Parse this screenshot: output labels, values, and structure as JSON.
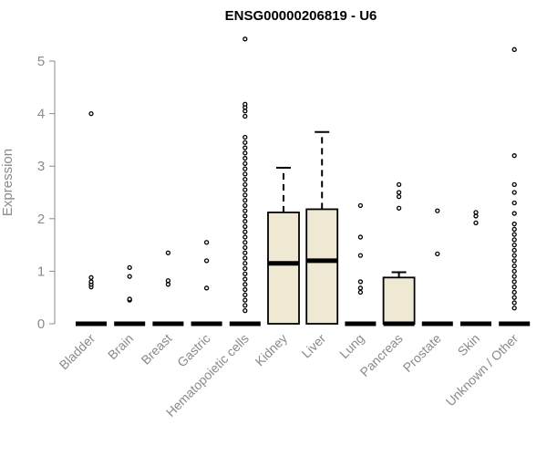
{
  "chart_data": {
    "type": "box",
    "title": "ENSG00000206819 - U6",
    "xlabel": "",
    "ylabel": "Expression",
    "ylim": [
      0,
      5.45
    ],
    "yticks": [
      "0",
      "1",
      "2",
      "3",
      "4",
      "5"
    ],
    "grid": false,
    "box_fill": "#efe9d3",
    "categories": [
      "Bladder",
      "Brain",
      "Breast",
      "Gastric",
      "Hematopoietic cells",
      "Kidney",
      "Liver",
      "Lung",
      "Pancreas",
      "Prostate",
      "Skin",
      "Unknown / Other"
    ],
    "boxes": [
      {
        "category": "Bladder",
        "q1": 0,
        "median": 0,
        "q3": 0,
        "whisker_low": 0,
        "whisker_high": 0,
        "outliers": [
          0.7,
          0.75,
          0.8,
          0.88,
          4.0
        ]
      },
      {
        "category": "Brain",
        "q1": 0,
        "median": 0,
        "q3": 0,
        "whisker_low": 0,
        "whisker_high": 0,
        "outliers": [
          0.45,
          0.47,
          0.9,
          1.07
        ]
      },
      {
        "category": "Breast",
        "q1": 0,
        "median": 0,
        "q3": 0,
        "whisker_low": 0,
        "whisker_high": 0,
        "outliers": [
          0.75,
          0.82,
          1.35
        ]
      },
      {
        "category": "Gastric",
        "q1": 0,
        "median": 0,
        "q3": 0,
        "whisker_low": 0,
        "whisker_high": 0,
        "outliers": [
          0.68,
          1.2,
          1.55
        ]
      },
      {
        "category": "Hematopoietic cells",
        "q1": 0,
        "median": 0,
        "q3": 0,
        "whisker_low": 0,
        "whisker_high": 0,
        "outliers": [
          0.25,
          0.35,
          0.45,
          0.55,
          0.65,
          0.75,
          0.85,
          0.95,
          1.05,
          1.15,
          1.25,
          1.35,
          1.45,
          1.55,
          1.65,
          1.75,
          1.85,
          1.95,
          2.05,
          2.15,
          2.25,
          2.35,
          2.45,
          2.55,
          2.65,
          2.75,
          2.85,
          2.95,
          3.05,
          3.15,
          3.25,
          3.35,
          3.45,
          3.55,
          3.95,
          4.05,
          4.12,
          4.18,
          5.42
        ]
      },
      {
        "category": "Kidney",
        "q1": 0,
        "median": 1.15,
        "q3": 2.12,
        "whisker_low": 0,
        "whisker_high": 2.97,
        "outliers": []
      },
      {
        "category": "Liver",
        "q1": 0,
        "median": 1.2,
        "q3": 2.18,
        "whisker_low": 0,
        "whisker_high": 3.65,
        "outliers": []
      },
      {
        "category": "Lung",
        "q1": 0,
        "median": 0,
        "q3": 0,
        "whisker_low": 0,
        "whisker_high": 0,
        "outliers": [
          0.6,
          0.68,
          0.8,
          1.3,
          1.65,
          2.25
        ]
      },
      {
        "category": "Pancreas",
        "q1": 0,
        "median": 0,
        "q3": 0.88,
        "whisker_low": 0,
        "whisker_high": 0.98,
        "outliers": [
          2.2,
          2.42,
          2.5,
          2.65
        ]
      },
      {
        "category": "Prostate",
        "q1": 0,
        "median": 0,
        "q3": 0,
        "whisker_low": 0,
        "whisker_high": 0,
        "outliers": [
          1.33,
          2.15
        ]
      },
      {
        "category": "Skin",
        "q1": 0,
        "median": 0,
        "q3": 0,
        "whisker_low": 0,
        "whisker_high": 0,
        "outliers": [
          1.92,
          2.05,
          2.12
        ]
      },
      {
        "category": "Unknown / Other",
        "q1": 0,
        "median": 0,
        "q3": 0,
        "whisker_low": 0,
        "whisker_high": 0,
        "outliers": [
          0.3,
          0.4,
          0.5,
          0.6,
          0.7,
          0.8,
          0.9,
          1.0,
          1.1,
          1.2,
          1.3,
          1.4,
          1.5,
          1.6,
          1.7,
          1.8,
          1.9,
          2.1,
          2.3,
          2.5,
          2.65,
          3.2,
          5.22
        ]
      }
    ]
  }
}
